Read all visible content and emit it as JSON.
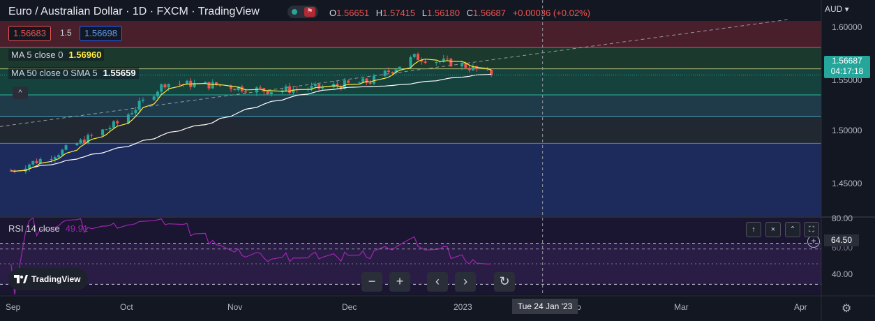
{
  "header": {
    "title": "Euro / Australian Dollar · 1D · FXCM · TradingView",
    "ohlc": [
      {
        "key": "O",
        "value": "1.56651"
      },
      {
        "key": "H",
        "value": "1.57415"
      },
      {
        "key": "L",
        "value": "1.56180"
      },
      {
        "key": "C",
        "value": "1.56687"
      },
      {
        "key": "",
        "value": "+0.00036 (+0.02%)"
      }
    ]
  },
  "trade": {
    "sell": "1.56683",
    "spread": "1.5",
    "buy": "1.56698"
  },
  "indicators": {
    "ma5_label": "MA 5 close 0",
    "ma5_value": "1.56960",
    "ma50_label": "MA 50 close 0 SMA 5",
    "ma50_value": "1.55659",
    "rsi_label": "RSI 14 close",
    "rsi_value": "49.91"
  },
  "collapse_symbol": "^",
  "price_axis": {
    "currency": "AUD",
    "ticks": [
      "1.60000",
      "1.55000",
      "1.50000",
      "1.45000"
    ],
    "last_price": "1.56687",
    "countdown": "04:17:18"
  },
  "rsi_axis": {
    "ticks": [
      "80.00",
      "60.00",
      "40.00"
    ],
    "cursor_value": "64.50"
  },
  "time_axis": {
    "ticks": [
      "Sep",
      "Oct",
      "Nov",
      "Dec",
      "2023",
      "Feb",
      "Mar",
      "Apr"
    ],
    "cursor_label": "Tue 24 Jan '23"
  },
  "pane_controls": {
    "up": "↑",
    "close": "×",
    "collapse": "⌃",
    "maximize": "⛶"
  },
  "bottom_nav": {
    "zoom_out": "−",
    "zoom_in": "+",
    "scroll_left": "‹",
    "scroll_right": "›",
    "reset": "↻"
  },
  "brand": {
    "logo_text": "TradingView"
  },
  "settings_icon": "⚙",
  "colors": {
    "background": "#131722",
    "bull": "#26a69a",
    "bear": "#ef5350",
    "ma5": "#ffeb3b",
    "ma50": "#ffffff",
    "rsi": "#9c27b0"
  },
  "chart_data": {
    "type": "candlestick",
    "symbol": "EURAUD",
    "x_range": [
      "2022-08-29",
      "2023-04-10"
    ],
    "y_range": [
      1.415,
      1.625
    ],
    "horizontal_levels": [
      1.5965,
      1.5735,
      1.5455,
      1.5225,
      1.4935
    ],
    "level_zones": [
      {
        "from": 1.5965,
        "to": 1.625,
        "color": "#4a1f2c"
      },
      {
        "from": 1.5735,
        "to": 1.5965,
        "color": "#1b3a2d"
      },
      {
        "from": 1.5455,
        "to": 1.5735,
        "color": "#16423d"
      },
      {
        "from": 1.5225,
        "to": 1.5455,
        "color": "#1f3b4a"
      },
      {
        "from": 1.4935,
        "to": 1.5225,
        "color": "#222831"
      },
      {
        "from": 1.415,
        "to": 1.4935,
        "color": "#1c2b5c"
      }
    ],
    "trendline": {
      "start": [
        "2022-08-29",
        1.5115
      ],
      "end": [
        "2023-04-01",
        1.6265
      ]
    },
    "closes": [
      {
        "date": "2022-09-01",
        "close": 1.464
      },
      {
        "date": "2022-09-15",
        "close": 1.485
      },
      {
        "date": "2022-09-30",
        "close": 1.515
      },
      {
        "date": "2022-10-13",
        "close": 1.558
      },
      {
        "date": "2022-10-27",
        "close": 1.556
      },
      {
        "date": "2022-11-10",
        "close": 1.55
      },
      {
        "date": "2022-11-24",
        "close": 1.553
      },
      {
        "date": "2022-12-08",
        "close": 1.56
      },
      {
        "date": "2022-12-20",
        "close": 1.586
      },
      {
        "date": "2023-01-02",
        "close": 1.578
      },
      {
        "date": "2023-01-10",
        "close": 1.56687
      }
    ],
    "ma5": {
      "name": "MA 5",
      "last": 1.5696
    },
    "ma50": {
      "name": "MA 50",
      "last": 1.55659
    },
    "rsi": {
      "name": "RSI 14",
      "last": 49.91,
      "range": [
        20,
        95
      ],
      "bands": [
        70,
        30
      ]
    }
  }
}
